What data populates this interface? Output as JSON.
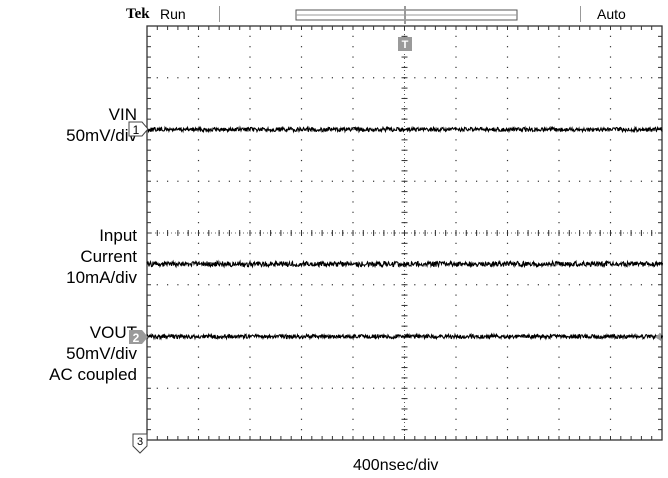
{
  "header": {
    "brand": "Tek",
    "status": "Run",
    "trigger_mode": "Auto"
  },
  "channel_labels": [
    {
      "name": "VIN",
      "scale": "50mV/div"
    },
    {
      "name": "Input",
      "line2": "Current",
      "scale": "10mA/div"
    },
    {
      "name": "VOUT",
      "scale": "50mV/div",
      "note": "AC coupled"
    }
  ],
  "markers": {
    "ch1": "1",
    "ch2": "2",
    "ch3": "3",
    "trigger": "T"
  },
  "chart_data": {
    "type": "line",
    "xlabel": "400nsec/div",
    "divisions": {
      "x": 10,
      "y": 8
    },
    "grid": true,
    "series": [
      {
        "name": "VIN",
        "level_div": 6,
        "noise_div": 0.04
      },
      {
        "name": "Input Current",
        "level_div": 3.4,
        "noise_div": 0.05
      },
      {
        "name": "VOUT",
        "level_div": 2,
        "noise_div": 0.04
      }
    ],
    "colors": {
      "trace": "#000000",
      "grid": "#333333",
      "marker": "#9a9a9a"
    }
  }
}
